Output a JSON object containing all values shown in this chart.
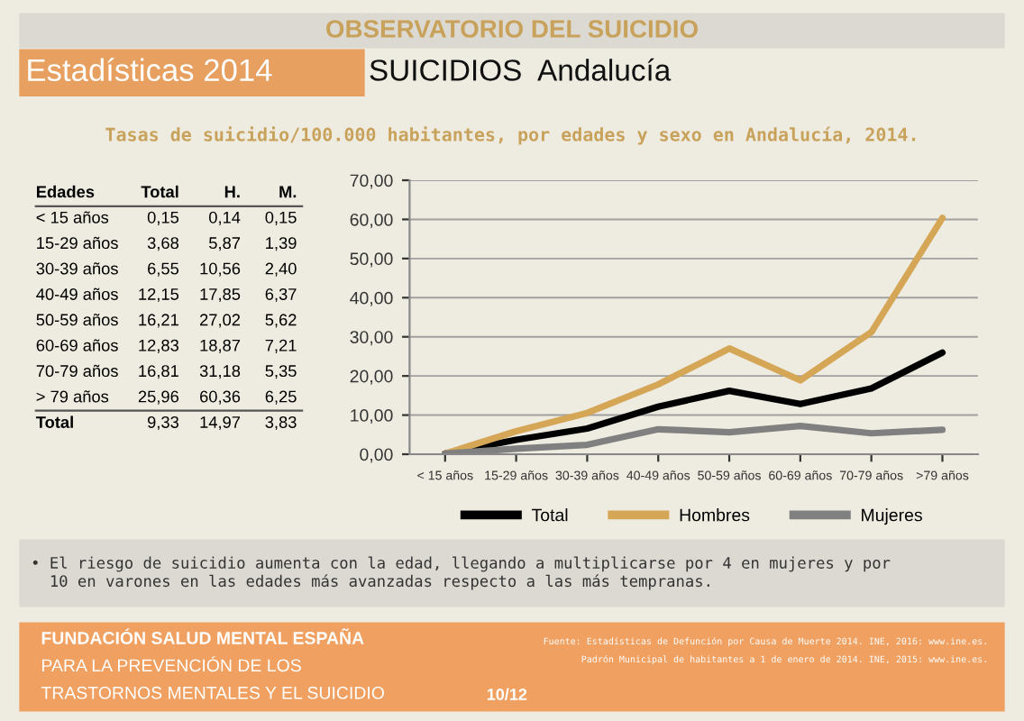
{
  "chart_data": {
    "type": "line",
    "title": "OBSERVATORIO DEL SUICIDIO",
    "subtitle": "Tasas de suicidio/100.000 habitantes, por edades y sexo en Andalucía, 2014.",
    "categories": [
      "< 15 años",
      "15-29 años",
      "30-39 años",
      "40-49 años",
      "50-59 años",
      "60-69 años",
      "70-79 años",
      ">79 años"
    ],
    "series": [
      {
        "name": "Total",
        "color": "#000000",
        "values": [
          0.15,
          3.68,
          6.55,
          12.15,
          16.21,
          12.83,
          16.81,
          25.96
        ]
      },
      {
        "name": "Hombres",
        "color": "#d4a656",
        "values": [
          0.14,
          5.87,
          10.56,
          17.85,
          27.02,
          18.87,
          31.18,
          60.36
        ]
      },
      {
        "name": "Mujeres",
        "color": "#808080",
        "values": [
          0.15,
          1.39,
          2.4,
          6.37,
          5.62,
          7.21,
          5.35,
          6.25
        ]
      }
    ],
    "ylim": [
      0,
      70
    ],
    "yticks": [
      {
        "value": 0,
        "label": "0,00"
      },
      {
        "value": 10,
        "label": "10,00"
      },
      {
        "value": 20,
        "label": "20,00"
      },
      {
        "value": 30,
        "label": "30,00"
      },
      {
        "value": 40,
        "label": "40,00"
      },
      {
        "value": 50,
        "label": "50,00"
      },
      {
        "value": 60,
        "label": "60,00"
      },
      {
        "value": 70,
        "label": "70,00"
      }
    ],
    "grid": "y",
    "legend": "bottom",
    "marker": "none",
    "line_style": "solid",
    "annotations": [
      "Estadísticas 2014",
      "SUICIDIOS  Andalucía",
      "Edades",
      "Total",
      "H.",
      "M.",
      "< 15 años",
      "15-29 años",
      "30-39 años",
      "40-49 años",
      "50-59 años",
      "60-69 años",
      "70-79 años",
      "> 79 años",
      "Total",
      "9,33",
      "14,97",
      "3,83",
      "• El riesgo de suicidio aumenta con la edad, llegando a multiplicarse por 4 en mujeres y por\n  10 en varones en las edades más avanzadas respecto a las más tempranas.",
      "FUNDACIÓN SALUD MENTAL ESPAÑA",
      "PARA LA PREVENCIÓN DE LOS",
      "TRASTORNOS MENTALES Y EL SUICIDIO",
      "Fuente: Estadísticas de Defunción por Causa de Muerte 2014. INE, 2016: www.ine.es.",
      "Padrón Municipal de habitantes a 1 de enero de 2014. INE, 2015: www.ine.es.",
      "10/12",
      "0,15",
      "3,68",
      "6,55",
      "12,15",
      "16,21",
      "12,83",
      "16,81",
      "25,96",
      "0,14",
      "5,87",
      "10,56",
      "17,85",
      "27,02",
      "18,87",
      "31,18",
      "60,36",
      "0,15",
      "1,39",
      "2,40",
      "6,37",
      "5,62",
      "7,21",
      "5,35",
      "6,25"
    ]
  }
}
